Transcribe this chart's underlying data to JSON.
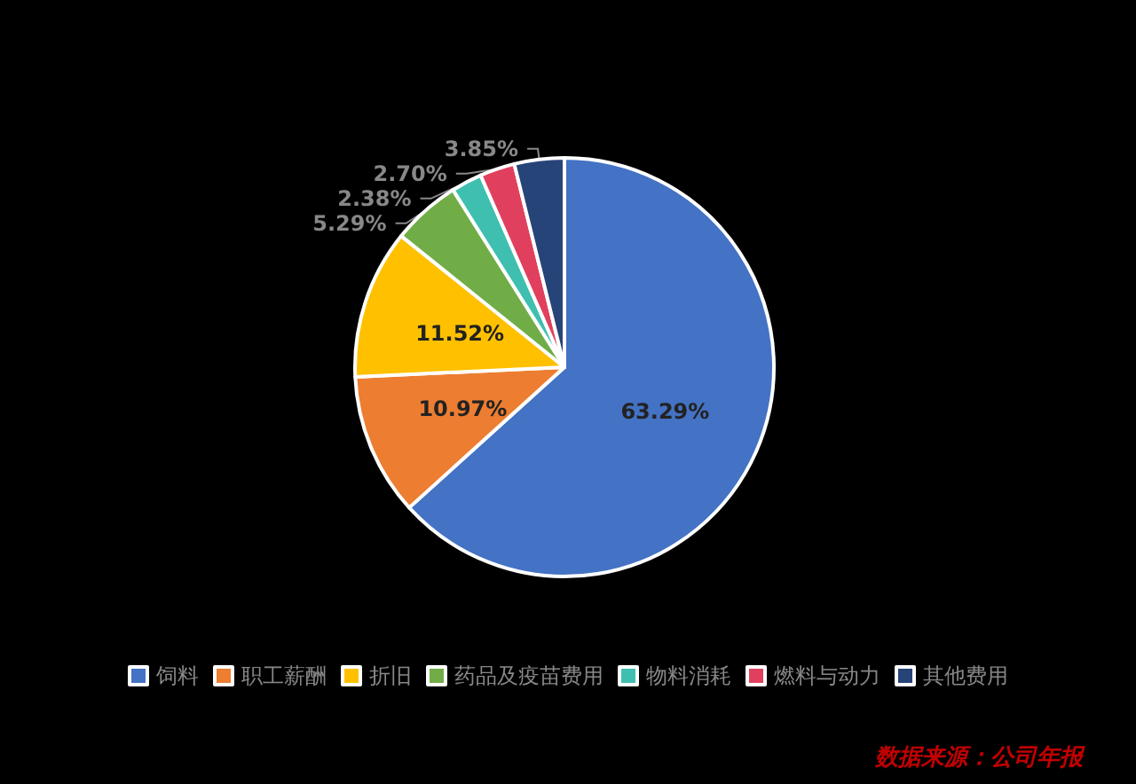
{
  "chart_data": {
    "type": "pie",
    "categories": [
      "饲料",
      "职工薪酬",
      "折旧",
      "药品及疫苗费用",
      "物料消耗",
      "燃料与动力",
      "其他费用"
    ],
    "values": [
      63.29,
      10.97,
      11.52,
      5.29,
      2.38,
      2.7,
      3.85
    ],
    "colors": [
      "#4472c4",
      "#ed7d31",
      "#ffc000",
      "#70ad47",
      "#3fbfb0",
      "#e0405e",
      "#264478"
    ],
    "value_labels": [
      "63.29%",
      "10.97%",
      "11.52%",
      "5.29%",
      "2.38%",
      "2.70%",
      "3.85%"
    ],
    "legend": "bottom",
    "annotations": [
      "数据来源：公司年报"
    ]
  }
}
